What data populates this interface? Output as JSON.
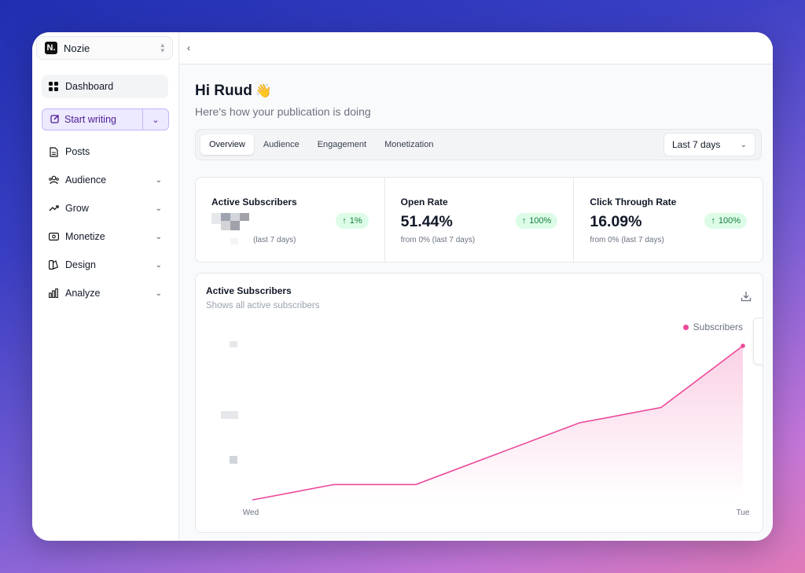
{
  "brand": {
    "logo_letter": "N.",
    "name": "Nozie"
  },
  "sidebar": {
    "items": [
      {
        "label": "Dashboard",
        "icon": "grid-icon"
      },
      {
        "label": "Posts",
        "icon": "document-icon"
      },
      {
        "label": "Audience",
        "icon": "people-icon"
      },
      {
        "label": "Grow",
        "icon": "trend-up-icon"
      },
      {
        "label": "Monetize",
        "icon": "money-icon"
      },
      {
        "label": "Design",
        "icon": "palette-icon"
      },
      {
        "label": "Analyze",
        "icon": "bar-chart-icon"
      }
    ],
    "start_writing": "Start writing"
  },
  "header": {
    "greeting": "Hi Ruud",
    "greeting_emoji": "👋",
    "subtitle": "Here's how your publication is doing"
  },
  "tabs": [
    "Overview",
    "Audience",
    "Engagement",
    "Monetization"
  ],
  "active_tab": "Overview",
  "range": {
    "selected": "Last 7 days"
  },
  "stats": [
    {
      "title": "Active Subscribers",
      "value": "",
      "change": "1%",
      "sub": "(last 7 days)"
    },
    {
      "title": "Open Rate",
      "value": "51.44%",
      "change": "100%",
      "sub": "from 0% (last 7 days)"
    },
    {
      "title": "Click Through Rate",
      "value": "16.09%",
      "change": "100%",
      "sub": "from 0% (last 7 days)"
    }
  ],
  "colors": {
    "accent": "#ec4899",
    "positive_bg": "#dcfce7",
    "positive_fg": "#15803d",
    "brand_purple": "#4c1d95"
  },
  "chart": {
    "title": "Active Subscribers",
    "subtitle": "Shows all active subscribers",
    "legend": "Subscribers"
  },
  "chart_data": {
    "type": "area",
    "categories": [
      "Wed",
      "",
      "",
      "",
      "",
      "",
      "Tue"
    ],
    "series": [
      {
        "name": "Subscribers",
        "values": [
          1,
          2,
          2,
          4,
          6,
          7,
          11
        ]
      }
    ],
    "xlabel": "",
    "ylabel": "",
    "tick_labels_x": [
      "Wed",
      "Tue"
    ],
    "grid": false,
    "legend_position": "top-right"
  }
}
